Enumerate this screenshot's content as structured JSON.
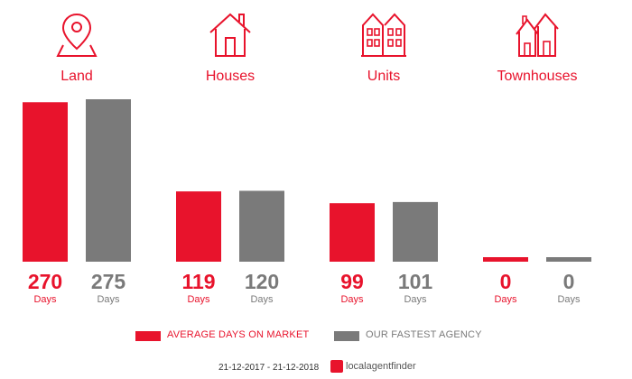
{
  "colors": {
    "primary": "#e8132c",
    "secondary": "#7a7a7a"
  },
  "categories": [
    {
      "label": "Land",
      "icon": "map-pin-icon"
    },
    {
      "label": "Houses",
      "icon": "house-icon"
    },
    {
      "label": "Units",
      "icon": "apartment-building-icon"
    },
    {
      "label": "Townhouses",
      "icon": "townhouses-icon"
    }
  ],
  "chart_data": {
    "type": "bar",
    "categories": [
      "Land",
      "Houses",
      "Units",
      "Townhouses"
    ],
    "series": [
      {
        "name": "AVERAGE DAYS ON MARKET",
        "values": [
          270,
          119,
          99,
          0
        ],
        "color": "#e8132c"
      },
      {
        "name": "OUR FASTEST AGENCY",
        "values": [
          275,
          120,
          101,
          0
        ],
        "color": "#7a7a7a"
      }
    ],
    "value_unit_label": "Days",
    "ylim": [
      0,
      275
    ],
    "grid": false,
    "legend_position": "bottom"
  },
  "legend": {
    "primary_label": "AVERAGE DAYS ON MARKET",
    "secondary_label": "OUR FASTEST AGENCY"
  },
  "footer": {
    "date_range": "21-12-2017 - 21-12-2018",
    "brand": "localagentfinder"
  }
}
